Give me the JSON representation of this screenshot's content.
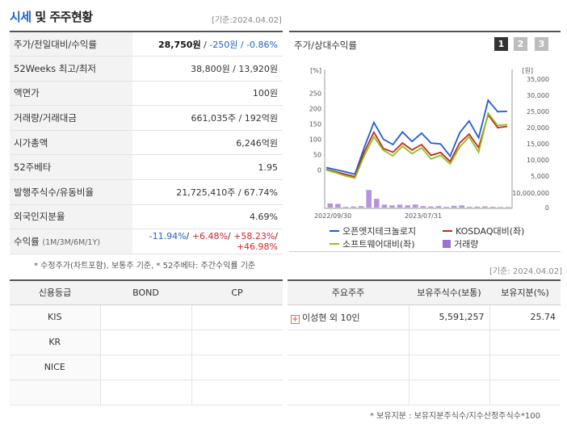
{
  "header": {
    "title_accent": "시세",
    "title_rest": " 및 주주현황",
    "date": "[기준:2024.04.02]"
  },
  "price_table": [
    {
      "label": "주가/전일대비/수익률"
    },
    {
      "label": "52Weeks 최고/최저",
      "value": "38,800원 / 13,920원"
    },
    {
      "label": "액면가",
      "value": "100원"
    },
    {
      "label": "거래량/거래대금",
      "value": "661,035주 / 192억원"
    },
    {
      "label": "시가총액",
      "value": "6,246억원"
    },
    {
      "label": "52주베타",
      "value": "1.95"
    },
    {
      "label": "발행주식수/유동비율",
      "value": "21,725,410주 / 67.74%"
    },
    {
      "label": "외국인지분율",
      "value": "4.69%"
    },
    {
      "label": "수익률",
      "label_small": "(1M/3M/6M/1Y)"
    }
  ],
  "price": {
    "current": "28,750원",
    "change": "-250원",
    "rate": "-0.86%",
    "sep": " / "
  },
  "returns": {
    "r1": "-11.94%",
    "r2": "+6.48%",
    "r3": "+58.23%",
    "r4": "+46.98%",
    "sep": "/ "
  },
  "note_left": "* 수정주가(차트포함), 보통주 기준, * 52주베타: 주간수익률 기준",
  "chart": {
    "title": "주가/상대수익률",
    "tabs": [
      "1",
      "2",
      "3"
    ],
    "active_tab": "1",
    "left_unit": "[%]",
    "right_unit": "[원]",
    "colors": {
      "company": "#1f5bd6",
      "kosdaq": "#c5291b",
      "sector": "#8cc222",
      "volume": "#9b72cf"
    }
  },
  "chart_data": {
    "type": "line",
    "x_labels": [
      "2022/09/30",
      "2023/07/31"
    ],
    "left_axis": {
      "ticks": [
        250,
        200,
        150,
        100,
        50,
        0
      ],
      "range": [
        -25,
        275
      ]
    },
    "right_axis_price": {
      "ticks": [
        "35,000",
        "30,000",
        "25,000",
        "20,000",
        "15,000",
        "10,000",
        "5,000"
      ]
    },
    "right_axis_volume": {
      "ticks": [
        "10,000,000",
        "0"
      ]
    },
    "series": [
      {
        "name": "오픈엣지테크놀로지",
        "values": [
          8,
          1,
          -6,
          -14,
          75,
          155,
          100,
          83,
          124,
          93,
          120,
          88,
          85,
          45,
          121,
          160,
          105,
          227,
          190,
          191
        ]
      },
      {
        "name": "KOSDAQ대비(좌)",
        "values": [
          2,
          -6,
          -14,
          -22,
          60,
          123,
          70,
          58,
          88,
          65,
          83,
          48,
          57,
          28,
          88,
          117,
          73,
          180,
          138,
          142
        ]
      },
      {
        "name": "소프트웨어대비(좌)",
        "values": [
          0,
          -9,
          -19,
          -26,
          48,
          108,
          64,
          46,
          78,
          53,
          72,
          36,
          48,
          20,
          75,
          108,
          58,
          185,
          145,
          148
        ]
      }
    ],
    "volume": {
      "name": "거래량",
      "values": [
        2.8,
        2.5,
        0.5,
        0.7,
        1.0,
        12,
        6,
        2.0,
        1.5,
        2.0,
        1.5,
        2.1,
        1.0,
        0.8,
        1.0,
        0.5,
        1.2,
        1.5,
        0.5,
        0.6,
        0.8,
        0.5,
        0.4,
        0.4
      ]
    }
  },
  "credit": {
    "headers": [
      "신용등급",
      "BOND",
      "CP"
    ],
    "rows": [
      [
        "KIS",
        "",
        ""
      ],
      [
        "KR",
        "",
        ""
      ],
      [
        "NICE",
        "",
        ""
      ],
      [
        "",
        "",
        ""
      ]
    ]
  },
  "holders": {
    "date": "[기준: 2024.04.02]",
    "headers": [
      "주요주주",
      "보유주식수(보통)",
      "보유지분(%)"
    ],
    "rows": [
      {
        "name": "이성현 외 10인",
        "shares": "5,591,257",
        "pct": "25.74"
      }
    ]
  },
  "note_right": "* 보유지분 : 보유지분주식수/지수산정주식수*100"
}
